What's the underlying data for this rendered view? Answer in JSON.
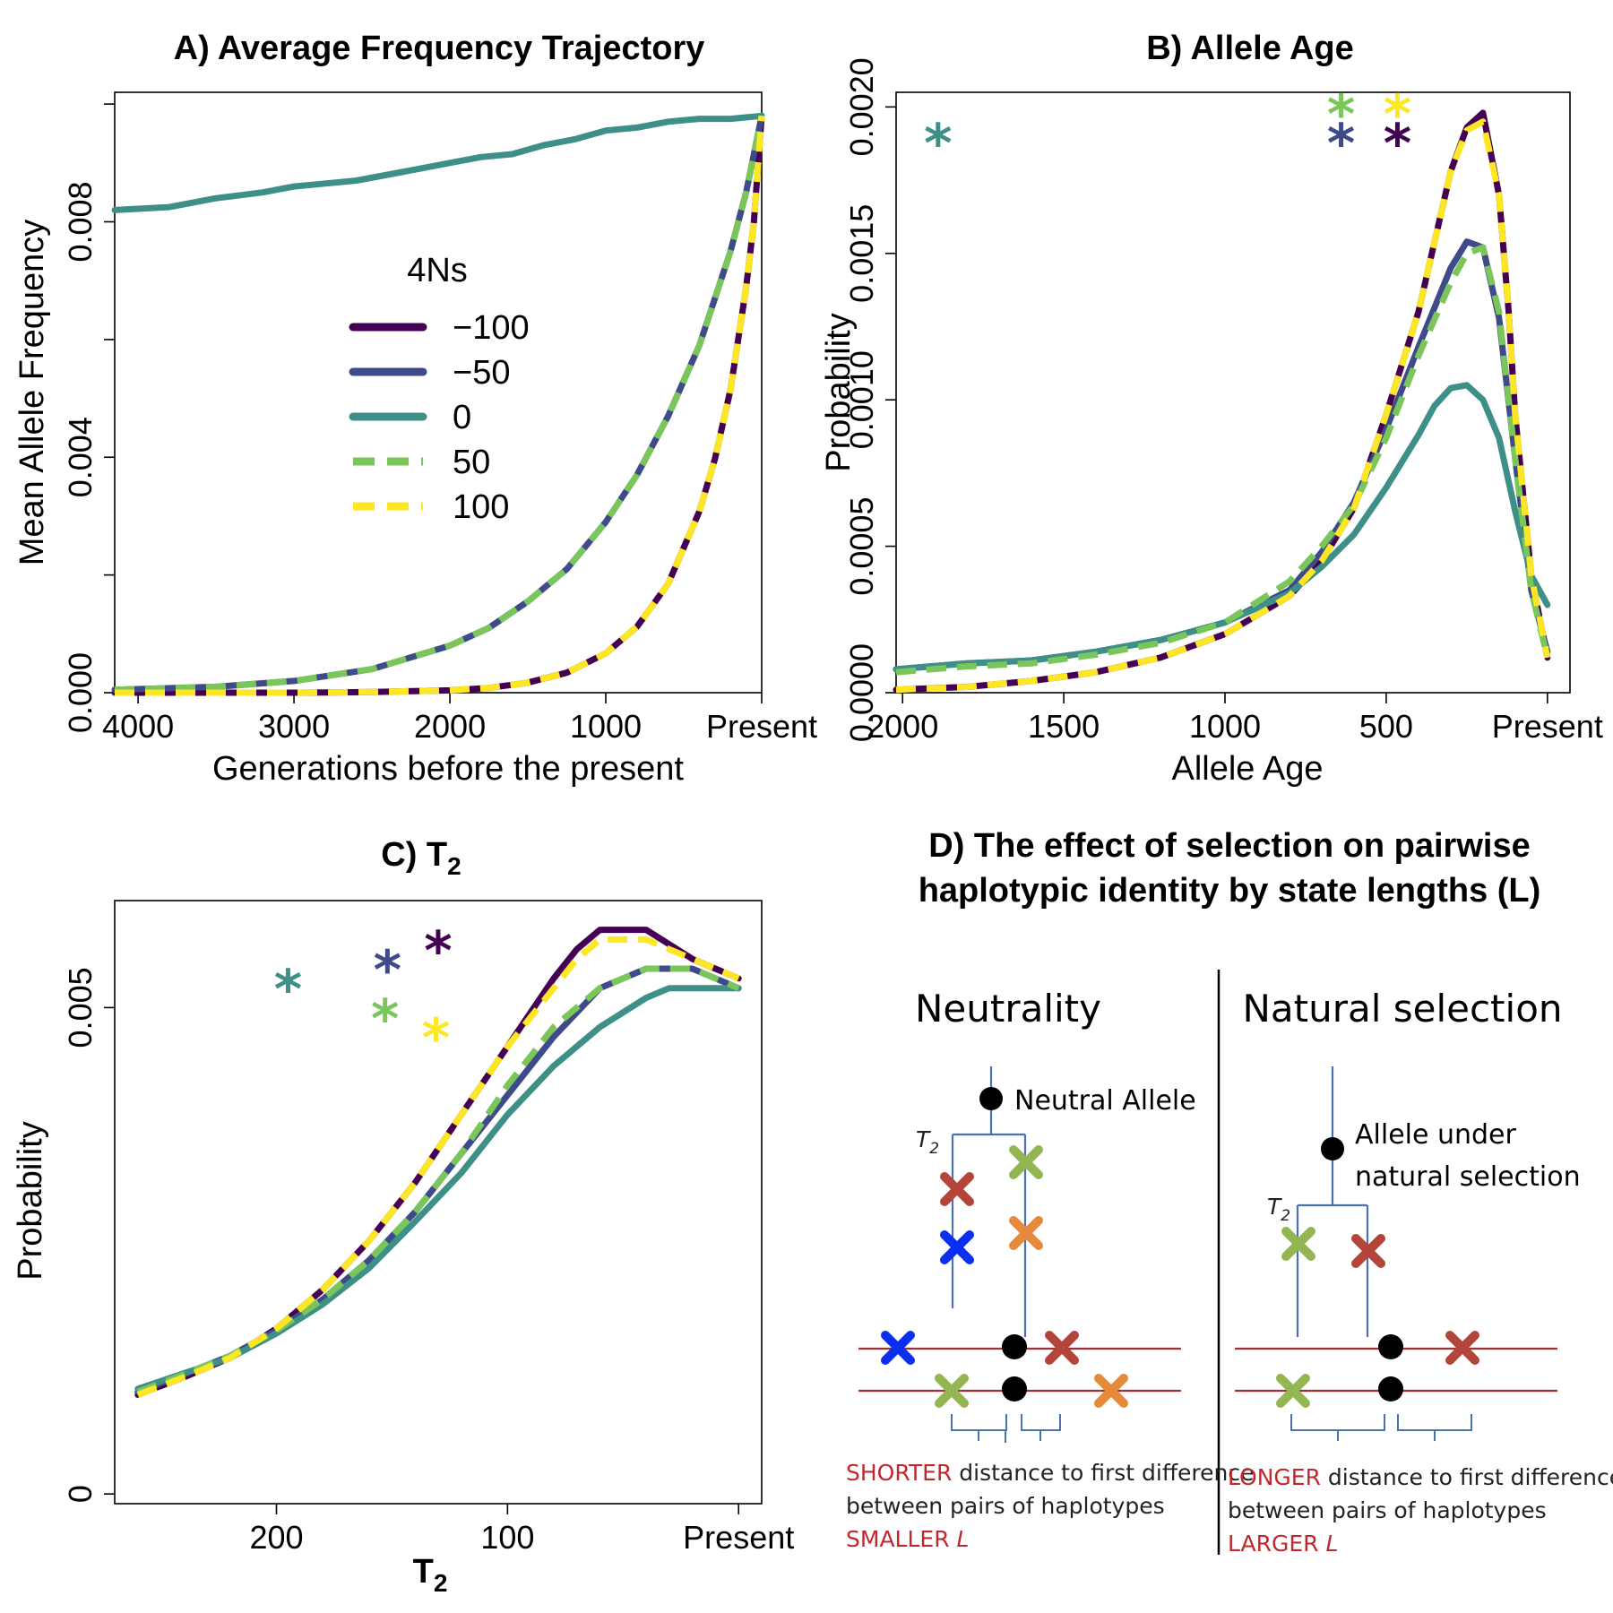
{
  "colors": {
    "m100": "#440154",
    "m50": "#3e4a89",
    "zero": "#3e8f88",
    "p50": "#7ac65a",
    "p100": "#fde725",
    "tree": "#4a72b0",
    "chrom": "#a03030",
    "red_text": "#c0282d",
    "x_red": "#b5443a",
    "x_green": "#93b653",
    "x_orange": "#e58a3a",
    "x_blue": "#0b2ff0"
  },
  "chart_data": [
    {
      "id": "A",
      "type": "line",
      "title": "A) Average Frequency Trajectory",
      "xlabel": "Generations before the present",
      "ylabel": "Mean Allele Frequency",
      "xlim": [
        4150,
        0
      ],
      "ylim": [
        0,
        0.0102
      ],
      "xticks": [
        4000,
        3000,
        2000,
        1000,
        0
      ],
      "xtick_labels": [
        "4000",
        "3000",
        "2000",
        "1000",
        "Present"
      ],
      "yticks": [
        0.0,
        0.004,
        0.008
      ],
      "ytick_labels": [
        "0.000",
        "0.004",
        "0.008"
      ],
      "yticks_minor": [
        0.002,
        0.006,
        0.01
      ],
      "legend_title": "4Ns",
      "legend_position": "center-left",
      "series": [
        {
          "name": "−100",
          "color_key": "m100",
          "dashed": false,
          "x": [
            4150,
            3500,
            3000,
            2500,
            2000,
            1750,
            1500,
            1250,
            1000,
            800,
            600,
            400,
            300,
            200,
            100,
            50,
            0
          ],
          "y": [
            0.0,
            0.0,
            0.0,
            1e-05,
            4e-05,
            8e-05,
            0.00017,
            0.00034,
            0.00067,
            0.00112,
            0.00185,
            0.00308,
            0.00397,
            0.00515,
            0.00688,
            0.008,
            0.0098
          ]
        },
        {
          "name": "−50",
          "color_key": "m50",
          "dashed": false,
          "x": [
            4150,
            3500,
            3000,
            2500,
            2000,
            1750,
            1500,
            1250,
            1000,
            800,
            600,
            400,
            200,
            100,
            0
          ],
          "y": [
            5e-05,
            0.0001,
            0.0002,
            0.0004,
            0.0008,
            0.0011,
            0.00155,
            0.0021,
            0.0029,
            0.0037,
            0.0047,
            0.0059,
            0.0075,
            0.0085,
            0.0098
          ]
        },
        {
          "name": "0",
          "color_key": "zero",
          "dashed": false,
          "x": [
            4150,
            3800,
            3500,
            3200,
            3000,
            2800,
            2600,
            2400,
            2200,
            2000,
            1800,
            1600,
            1400,
            1200,
            1000,
            800,
            600,
            400,
            200,
            0
          ],
          "y": [
            0.0082,
            0.00825,
            0.0084,
            0.0085,
            0.0086,
            0.00865,
            0.0087,
            0.0088,
            0.0089,
            0.009,
            0.0091,
            0.00915,
            0.0093,
            0.0094,
            0.00955,
            0.0096,
            0.0097,
            0.00975,
            0.00975,
            0.0098
          ]
        },
        {
          "name": "50",
          "color_key": "p50",
          "dashed": true,
          "x": [
            4150,
            3500,
            3000,
            2500,
            2000,
            1750,
            1500,
            1250,
            1000,
            800,
            600,
            400,
            200,
            100,
            0
          ],
          "y": [
            5e-05,
            0.0001,
            0.0002,
            0.0004,
            0.0008,
            0.0011,
            0.00155,
            0.0021,
            0.0029,
            0.0037,
            0.0047,
            0.0059,
            0.0075,
            0.0085,
            0.0098
          ]
        },
        {
          "name": "100",
          "color_key": "p100",
          "dashed": true,
          "x": [
            4150,
            3500,
            3000,
            2500,
            2000,
            1750,
            1500,
            1250,
            1000,
            800,
            600,
            400,
            300,
            200,
            100,
            50,
            0
          ],
          "y": [
            0.0,
            0.0,
            0.0,
            1e-05,
            4e-05,
            8e-05,
            0.00017,
            0.00034,
            0.00067,
            0.00112,
            0.00185,
            0.00308,
            0.00397,
            0.00515,
            0.00688,
            0.008,
            0.0098
          ]
        }
      ]
    },
    {
      "id": "B",
      "type": "line",
      "title": "B) Allele Age",
      "xlabel": "Allele Age",
      "ylabel": "Probability",
      "xlim": [
        2020,
        -70
      ],
      "ylim": [
        0,
        0.00205
      ],
      "xticks": [
        2000,
        1500,
        1000,
        500,
        0
      ],
      "xtick_labels": [
        "2000",
        "1500",
        "1000",
        "500",
        "Present"
      ],
      "yticks": [
        0.0,
        0.0005,
        0.001,
        0.0015,
        0.002
      ],
      "ytick_labels": [
        "0.0000",
        "0.0005",
        "0.0010",
        "0.0015",
        "0.0020"
      ],
      "markers": [
        {
          "color_key": "zero",
          "x": 1890,
          "y": 0.00188
        },
        {
          "color_key": "p50",
          "x": 640,
          "y": 0.00198
        },
        {
          "color_key": "p100",
          "x": 465,
          "y": 0.00198
        },
        {
          "color_key": "m50",
          "x": 640,
          "y": 0.00188
        },
        {
          "color_key": "m100",
          "x": 465,
          "y": 0.00188
        }
      ],
      "series": [
        {
          "name": "−100",
          "color_key": "m100",
          "dashed": false,
          "x": [
            2020,
            1800,
            1600,
            1400,
            1200,
            1000,
            800,
            700,
            600,
            500,
            400,
            300,
            250,
            200,
            150,
            120,
            100,
            50,
            0
          ],
          "y": [
            1e-05,
            2e-05,
            4e-05,
            7e-05,
            0.00012,
            0.0002,
            0.00033,
            0.00045,
            0.00063,
            0.00095,
            0.0013,
            0.00178,
            0.00193,
            0.00198,
            0.0017,
            0.0013,
            0.00095,
            0.0004,
            0.00012
          ]
        },
        {
          "name": "−50",
          "color_key": "m50",
          "dashed": false,
          "x": [
            2020,
            1800,
            1600,
            1400,
            1200,
            1000,
            800,
            700,
            600,
            500,
            400,
            300,
            250,
            200,
            150,
            100,
            50,
            0
          ],
          "y": [
            8e-05,
            0.0001,
            0.00011,
            0.00014,
            0.00018,
            0.00024,
            0.00035,
            0.00048,
            0.00065,
            0.0009,
            0.00118,
            0.00145,
            0.00154,
            0.00152,
            0.00128,
            0.0008,
            0.00035,
            0.00014
          ]
        },
        {
          "name": "0",
          "color_key": "zero",
          "dashed": false,
          "x": [
            2020,
            1800,
            1600,
            1400,
            1200,
            1000,
            800,
            700,
            600,
            500,
            400,
            350,
            300,
            250,
            200,
            150,
            100,
            50,
            0
          ],
          "y": [
            8e-05,
            0.0001,
            0.00011,
            0.00014,
            0.00018,
            0.00024,
            0.00034,
            0.00043,
            0.00054,
            0.0007,
            0.00088,
            0.00098,
            0.00104,
            0.00105,
            0.001,
            0.00087,
            0.00062,
            0.0004,
            0.0003
          ]
        },
        {
          "name": "50",
          "color_key": "p50",
          "dashed": true,
          "x": [
            2020,
            1800,
            1600,
            1400,
            1200,
            1000,
            800,
            700,
            600,
            500,
            400,
            300,
            250,
            200,
            150,
            100,
            50,
            0
          ],
          "y": [
            7e-05,
            9e-05,
            0.0001,
            0.00013,
            0.00017,
            0.00024,
            0.00038,
            0.0005,
            0.00064,
            0.00087,
            0.00115,
            0.0014,
            0.0015,
            0.00152,
            0.0013,
            0.0008,
            0.00035,
            0.00012
          ]
        },
        {
          "name": "100",
          "color_key": "p100",
          "dashed": true,
          "x": [
            2020,
            1800,
            1600,
            1400,
            1200,
            1000,
            800,
            700,
            600,
            500,
            400,
            300,
            250,
            200,
            150,
            120,
            100,
            50,
            0
          ],
          "y": [
            1e-05,
            2e-05,
            4e-05,
            7e-05,
            0.00012,
            0.0002,
            0.00033,
            0.00045,
            0.00063,
            0.00095,
            0.0013,
            0.00178,
            0.00192,
            0.00195,
            0.0017,
            0.0013,
            0.00095,
            0.0004,
            0.00012
          ]
        }
      ]
    },
    {
      "id": "C",
      "type": "line",
      "title": "C) T",
      "title_subscript": "2",
      "xlabel": "T",
      "xlabel_subscript": "2",
      "ylabel": "Probability",
      "xlim": [
        270,
        -10
      ],
      "ylim": [
        -0.0001,
        0.0061
      ],
      "xticks": [
        200,
        100,
        0
      ],
      "xtick_labels": [
        "200",
        "100",
        "Present"
      ],
      "yticks": [
        0.0,
        0.005
      ],
      "ytick_labels": [
        "0",
        "0.005"
      ],
      "markers": [
        {
          "color_key": "zero",
          "x": 195,
          "y": 0.0052
        },
        {
          "color_key": "m50",
          "x": 152,
          "y": 0.0054
        },
        {
          "color_key": "m100",
          "x": 130,
          "y": 0.0056
        },
        {
          "color_key": "p50",
          "x": 153,
          "y": 0.0049
        },
        {
          "color_key": "p100",
          "x": 131,
          "y": 0.0047
        }
      ],
      "series": [
        {
          "name": "−100",
          "color_key": "m100",
          "dashed": false,
          "x": [
            260,
            240,
            220,
            200,
            180,
            160,
            140,
            120,
            100,
            80,
            70,
            60,
            50,
            40,
            30,
            20,
            10,
            0
          ],
          "y": [
            0.00102,
            0.0012,
            0.0014,
            0.0017,
            0.0021,
            0.0026,
            0.0032,
            0.0039,
            0.0046,
            0.0053,
            0.0056,
            0.0058,
            0.0058,
            0.0058,
            0.00565,
            0.0055,
            0.0054,
            0.0053
          ]
        },
        {
          "name": "−50",
          "color_key": "m50",
          "dashed": false,
          "x": [
            260,
            240,
            220,
            200,
            180,
            160,
            140,
            120,
            100,
            80,
            60,
            40,
            30,
            20,
            10,
            0
          ],
          "y": [
            0.00105,
            0.00123,
            0.00142,
            0.00168,
            0.002,
            0.0024,
            0.0029,
            0.0035,
            0.0041,
            0.0047,
            0.0052,
            0.0054,
            0.0054,
            0.0054,
            0.0053,
            0.0052
          ]
        },
        {
          "name": "0",
          "color_key": "zero",
          "dashed": false,
          "x": [
            260,
            240,
            220,
            200,
            180,
            160,
            140,
            120,
            100,
            80,
            60,
            40,
            30,
            20,
            10,
            0
          ],
          "y": [
            0.00108,
            0.00124,
            0.0014,
            0.00165,
            0.00195,
            0.00232,
            0.0028,
            0.0033,
            0.0039,
            0.0044,
            0.0048,
            0.0051,
            0.0052,
            0.0052,
            0.0052,
            0.0052
          ]
        },
        {
          "name": "50",
          "color_key": "p50",
          "dashed": true,
          "x": [
            260,
            240,
            220,
            200,
            180,
            160,
            140,
            120,
            100,
            80,
            60,
            40,
            30,
            20,
            10,
            0
          ],
          "y": [
            0.00105,
            0.00123,
            0.00142,
            0.00168,
            0.002,
            0.0024,
            0.0029,
            0.0035,
            0.0042,
            0.0048,
            0.0052,
            0.0054,
            0.0054,
            0.0054,
            0.0053,
            0.0052
          ]
        },
        {
          "name": "100",
          "color_key": "p100",
          "dashed": true,
          "x": [
            260,
            240,
            220,
            200,
            180,
            160,
            140,
            120,
            100,
            80,
            70,
            60,
            50,
            40,
            30,
            20,
            10,
            0
          ],
          "y": [
            0.00102,
            0.0012,
            0.0014,
            0.0017,
            0.0021,
            0.0026,
            0.0032,
            0.0039,
            0.0046,
            0.0052,
            0.0055,
            0.0057,
            0.0057,
            0.0057,
            0.0056,
            0.0055,
            0.0054,
            0.0053
          ]
        }
      ]
    }
  ],
  "diagram": {
    "title_line1": "D) The effect of selection on pairwise",
    "title_line2": "haplotypic identity by state lengths (L)",
    "neutral": {
      "heading": "Neutrality",
      "allele_label": "Neutral Allele",
      "t2_label": "T",
      "t2_sub": "2",
      "caption_red1": "SHORTER",
      "caption_line1": " distance to first difference",
      "caption_line2": "between pairs of haplotypes",
      "caption_red3": "SMALLER ",
      "caption_italic3": "L"
    },
    "selection": {
      "heading": "Natural selection",
      "allele_label_line1": "Allele under",
      "allele_label_line2": "natural selection",
      "t2_label": "T",
      "t2_sub": "2",
      "caption_red1": "LONGER",
      "caption_line1": " distance to first difference",
      "caption_line2": "between pairs of haplotypes",
      "caption_red3": "LARGER ",
      "caption_italic3": "L"
    }
  }
}
